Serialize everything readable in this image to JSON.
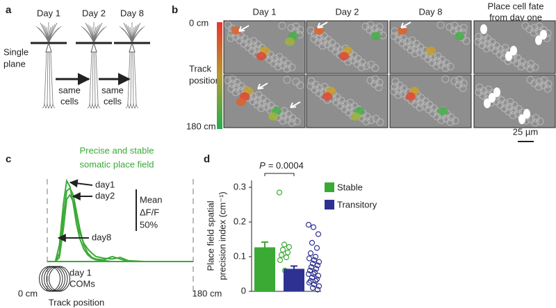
{
  "panel_a": {
    "label": "a",
    "days": [
      "Day 1",
      "Day 2",
      "Day 8"
    ],
    "plane_label": [
      "Single",
      "plane"
    ],
    "arrow_labels": [
      [
        "same",
        "cells"
      ],
      [
        "same",
        "cells"
      ]
    ]
  },
  "panel_b": {
    "label": "b",
    "columns": [
      "Day 1",
      "Day 2",
      "Day 8"
    ],
    "fate_title": [
      "Place cell fate",
      "from day one"
    ],
    "track_top": "0 cm",
    "track_bottom": "180 cm",
    "track_label": [
      "Track",
      "position"
    ],
    "scale_bar": "25 µm"
  },
  "chart_data": [
    {
      "type": "line",
      "panel": "c",
      "title": [
        "Precise and stable",
        "somatic place field"
      ],
      "x": [
        0,
        10,
        15,
        20,
        24,
        28,
        32,
        36,
        40,
        45,
        50,
        55,
        60,
        70,
        80,
        90,
        100,
        120,
        150,
        180
      ],
      "series": [
        {
          "name": "day1",
          "color": "#3aaa35",
          "values": [
            0,
            0,
            20,
            70,
            97,
            90,
            70,
            45,
            28,
            15,
            8,
            4,
            2,
            1,
            0,
            0,
            0,
            0,
            0,
            0
          ]
        },
        {
          "name": "day2",
          "color": "#3aaa35",
          "values": [
            0,
            0,
            10,
            55,
            85,
            88,
            80,
            60,
            40,
            20,
            10,
            5,
            3,
            2,
            6,
            3,
            0,
            0,
            0,
            0
          ]
        },
        {
          "name": "day8",
          "color": "#3aaa35",
          "values": [
            0,
            0,
            5,
            40,
            75,
            80,
            72,
            55,
            35,
            22,
            15,
            10,
            6,
            4,
            3,
            5,
            1,
            0,
            0,
            0
          ]
        }
      ],
      "xlim": [
        0,
        180
      ],
      "xticks": [
        {
          "value": 0,
          "label": "0 cm"
        },
        {
          "value": 180,
          "label": "180 cm"
        }
      ],
      "xlabel": "Track position",
      "scale_bar": {
        "value": 50,
        "label": "50%"
      },
      "scale_bar_title": [
        "Mean",
        "ΔF/F"
      ],
      "coms": [
        3,
        6,
        9,
        12,
        15
      ],
      "coms_label": [
        "day 1",
        "COMs"
      ]
    },
    {
      "type": "bar",
      "panel": "d",
      "categories": [
        "Stable",
        "Transitory"
      ],
      "values": [
        0.127,
        0.065
      ],
      "errors": [
        0.015,
        0.008
      ],
      "colors": [
        "#3aaa35",
        "#2e3192"
      ],
      "points": [
        [
          0.285,
          0.135,
          0.128,
          0.12,
          0.112,
          0.105,
          0.098,
          0.09,
          0.06,
          0.055
        ],
        [
          0.192,
          0.185,
          0.165,
          0.14,
          0.125,
          0.11,
          0.1,
          0.095,
          0.09,
          0.085,
          0.08,
          0.075,
          0.07,
          0.065,
          0.06,
          0.055,
          0.05,
          0.05,
          0.045,
          0.04,
          0.035,
          0.03,
          0.03,
          0.025,
          0.02,
          0.015,
          0.01,
          0.005
        ]
      ],
      "ylim": [
        0,
        0.32
      ],
      "yticks": [
        0,
        0.1,
        0.2,
        0.3
      ],
      "ylabel": [
        "Place field spatial",
        "precision index (cm⁻¹)"
      ],
      "p_symbol": "P",
      "p_text": "= 0.0004"
    }
  ]
}
